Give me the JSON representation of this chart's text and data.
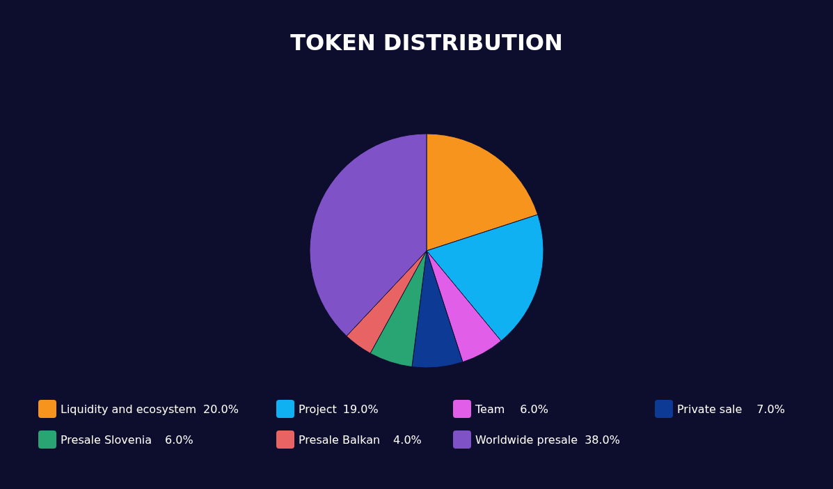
{
  "chart_data": {
    "type": "pie",
    "title": "TOKEN DISTRIBUTION",
    "categories": [
      "Liquidity and ecosystem",
      "Project",
      "Team",
      "Private sale",
      "Presale Slovenia",
      "Presale Balkan",
      "Worldwide presale"
    ],
    "values": [
      20,
      19,
      6,
      7,
      6,
      4,
      38
    ],
    "colors": [
      "#f7941d",
      "#0fb1f2",
      "#e15ee8",
      "#0d3a94",
      "#28a572",
      "#e86464",
      "#8052c8"
    ],
    "value_labels": [
      "20.0%",
      "19.0%",
      "6.0%",
      "7.0%",
      "6.0%",
      "4.0%",
      "38.0%"
    ],
    "legend": "bottom"
  }
}
